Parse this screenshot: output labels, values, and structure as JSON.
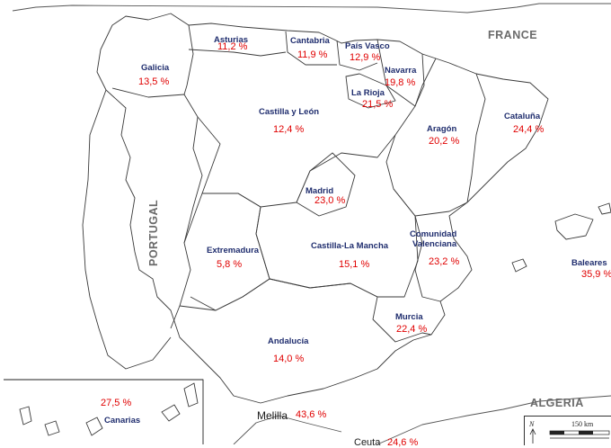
{
  "countries": {
    "france": "FRANCE",
    "portugal": "PORTUGAL",
    "algeria": "ALGERIA"
  },
  "regions": [
    {
      "id": "galicia",
      "name": "Galicia",
      "value": "13,5 %"
    },
    {
      "id": "asturias",
      "name": "Asturias",
      "value": "11,2 %"
    },
    {
      "id": "cantabria",
      "name": "Cantabria",
      "value": "11,9 %"
    },
    {
      "id": "pais-vasco",
      "name": "País Vasco",
      "value": "12,9 %"
    },
    {
      "id": "navarra",
      "name": "Navarra",
      "value": "19,8 %"
    },
    {
      "id": "la-rioja",
      "name": "La Rioja",
      "value": "21,5 %"
    },
    {
      "id": "castilla-leon",
      "name": "Castilla y León",
      "value": "12,4 %"
    },
    {
      "id": "aragon",
      "name": "Aragón",
      "value": "20,2 %"
    },
    {
      "id": "cataluna",
      "name": "Cataluña",
      "value": "24,4 %"
    },
    {
      "id": "madrid",
      "name": "Madrid",
      "value": "23,0 %"
    },
    {
      "id": "extremadura",
      "name": "Extremadura",
      "value": "5,8 %"
    },
    {
      "id": "castilla-la-mancha",
      "name": "Castilla-La Mancha",
      "value": "15,1 %"
    },
    {
      "id": "valenciana",
      "name": "Comunidad Valenciana",
      "name_line1": "Comunidad",
      "name_line2": "Valenciana",
      "value": "23,2 %"
    },
    {
      "id": "baleares",
      "name": "Baleares",
      "value": "35,9 %"
    },
    {
      "id": "murcia",
      "name": "Murcia",
      "value": "22,4 %"
    },
    {
      "id": "andalucia",
      "name": "Andalucía",
      "value": "14,0 %"
    },
    {
      "id": "canarias",
      "name": "Canarias",
      "value": "27,5 %"
    },
    {
      "id": "melilla",
      "name": "Melilla",
      "value": "43,6 %"
    },
    {
      "id": "ceuta",
      "name": "Ceuta",
      "value": "24,6 %"
    }
  ],
  "scale": {
    "north": "N",
    "distance": "150 km"
  },
  "colors": {
    "region_name": "#1f2d6e",
    "value": "#e00000",
    "border": "#333333",
    "country_label": "#6a6a6a"
  }
}
